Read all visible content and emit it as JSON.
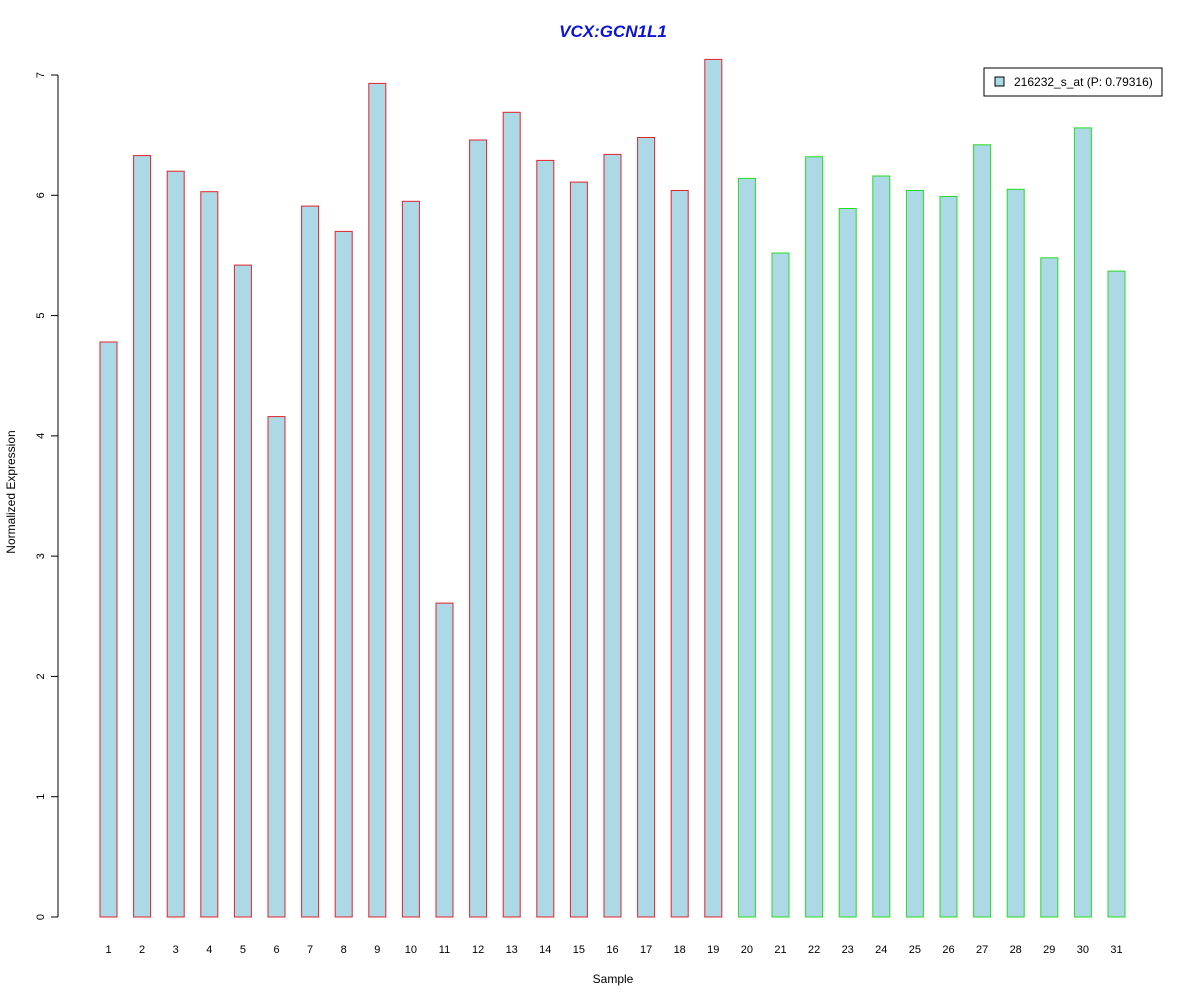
{
  "chart_data": {
    "type": "bar",
    "title": "VCX:GCN1L1",
    "xlabel": "Sample",
    "ylabel": "Normalized Expression",
    "ylim": [
      0,
      7
    ],
    "yticks": [
      0,
      1,
      2,
      3,
      4,
      5,
      6,
      7
    ],
    "categories": [
      "1",
      "2",
      "3",
      "4",
      "5",
      "6",
      "7",
      "8",
      "9",
      "10",
      "11",
      "12",
      "13",
      "14",
      "15",
      "16",
      "17",
      "18",
      "19",
      "20",
      "21",
      "22",
      "23",
      "24",
      "25",
      "26",
      "27",
      "28",
      "29",
      "30",
      "31"
    ],
    "series": [
      {
        "name": "216232_s_at (P: 0.79316)",
        "values": [
          4.78,
          6.33,
          6.2,
          6.03,
          5.42,
          4.16,
          5.91,
          5.7,
          6.93,
          5.95,
          2.61,
          6.46,
          6.69,
          6.29,
          6.11,
          6.34,
          6.48,
          6.04,
          7.13,
          6.14,
          5.52,
          6.32,
          5.89,
          6.16,
          6.04,
          5.99,
          6.42,
          6.05,
          5.48,
          6.56,
          5.37
        ]
      }
    ],
    "groups": [
      {
        "from": 1,
        "to": 19,
        "border_color": "#e0242a"
      },
      {
        "from": 20,
        "to": 31,
        "border_color": "#22dd22"
      }
    ],
    "bar_fill": "#add8e6",
    "title_color": "#0a14d2",
    "legend": {
      "placement": "top-right",
      "label": "216232_s_at (P: 0.79316)"
    }
  }
}
